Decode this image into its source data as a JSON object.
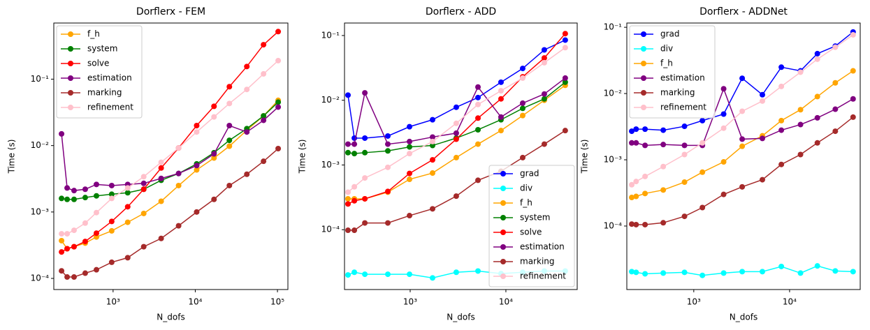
{
  "chart_data": [
    {
      "type": "line",
      "title": "Dorflerx - FEM",
      "xlabel": "N_dofs",
      "ylabel": "Time (s)",
      "xscale": "log",
      "yscale": "log",
      "legend": "upper left",
      "xlim": [
        190,
        134000
      ],
      "ylim": [
        6.8e-05,
        0.7
      ],
      "xticks": [
        {
          "value": 1000,
          "label": "10³"
        },
        {
          "value": 10000,
          "label": "10⁴"
        },
        {
          "value": 100000,
          "label": "10⁵"
        }
      ],
      "yticks": [
        {
          "value": 0.0001,
          "label": "10⁻⁴"
        },
        {
          "value": 0.001,
          "label": "10⁻³"
        },
        {
          "value": 0.01,
          "label": "10⁻²"
        },
        {
          "value": 0.1,
          "label": "10⁻¹"
        }
      ],
      "x": [
        236,
        276,
        335,
        458,
        627,
        962,
        1506,
        2360,
        3845,
        6270,
        10400,
        16900,
        26000,
        42400,
        67700,
        102000
      ],
      "series": [
        {
          "name": "f_h",
          "color": "#ffa500",
          "values": [
            0.00037,
            0.00028,
            0.0003,
            0.00034,
            0.00042,
            0.00052,
            0.0007,
            0.00095,
            0.00145,
            0.0025,
            0.0043,
            0.0065,
            0.0098,
            0.017,
            0.028,
            0.048
          ]
        },
        {
          "name": "system",
          "color": "#008000",
          "values": [
            0.0016,
            0.00155,
            0.00155,
            0.00165,
            0.00175,
            0.00185,
            0.00195,
            0.0022,
            0.003,
            0.0038,
            0.0053,
            0.0078,
            0.012,
            0.018,
            0.028,
            0.045
          ]
        },
        {
          "name": "solve",
          "color": "#ff0000",
          "values": [
            0.00025,
            0.00028,
            0.0003,
            0.00036,
            0.00048,
            0.00072,
            0.0012,
            0.0022,
            0.0046,
            0.0092,
            0.02,
            0.039,
            0.077,
            0.155,
            0.33,
            0.52
          ]
        },
        {
          "name": "estimation",
          "color": "#800080",
          "values": [
            0.015,
            0.0023,
            0.0021,
            0.0022,
            0.0026,
            0.0025,
            0.0026,
            0.0027,
            0.0032,
            0.0038,
            0.005,
            0.0075,
            0.02,
            0.016,
            0.024,
            0.038
          ]
        },
        {
          "name": "marking",
          "color": "#a52a2a",
          "values": [
            0.00013,
            0.000105,
            0.000105,
            0.00012,
            0.000135,
            0.000175,
            0.000205,
            0.0003,
            0.0004,
            0.00062,
            0.001,
            0.00155,
            0.0025,
            0.0037,
            0.0058,
            0.009
          ]
        },
        {
          "name": "refinement",
          "color": "#ffc0cb",
          "values": [
            0.00047,
            0.00047,
            0.00053,
            0.00068,
            0.00098,
            0.0016,
            0.0023,
            0.0034,
            0.0056,
            0.0092,
            0.016,
            0.027,
            0.043,
            0.07,
            0.12,
            0.19
          ]
        }
      ]
    },
    {
      "type": "line",
      "title": "Dorflerx - ADD",
      "xlabel": "N_dofs",
      "ylabel": "Time (s)",
      "xscale": "log",
      "yscale": "log",
      "legend": "lower right",
      "xlim": [
        206,
        55600
      ],
      "ylim": [
        1.19e-05,
        0.156
      ],
      "xticks": [
        {
          "value": 1000,
          "label": "10³"
        },
        {
          "value": 10000,
          "label": "10⁴"
        }
      ],
      "yticks": [
        {
          "value": 0.0001,
          "label": "10⁻⁴"
        },
        {
          "value": 0.001,
          "label": "10⁻³"
        },
        {
          "value": 0.01,
          "label": "10⁻²"
        },
        {
          "value": 0.1,
          "label": "10⁻¹"
        }
      ],
      "x": [
        224,
        261,
        336,
        584,
        984,
        1713,
        3030,
        5110,
        8890,
        14980,
        25200,
        41700
      ],
      "series": [
        {
          "name": "grad",
          "color": "#0000ff",
          "values": [
            0.012,
            0.0026,
            0.0026,
            0.0028,
            0.0039,
            0.005,
            0.0078,
            0.011,
            0.019,
            0.031,
            0.06,
            0.085
          ]
        },
        {
          "name": "div",
          "color": "#00ffff",
          "values": [
            2e-05,
            2.2e-05,
            2.05e-05,
            2.05e-05,
            2.05e-05,
            1.8e-05,
            2.2e-05,
            2.3e-05,
            2.1e-05,
            2.2e-05,
            2.3e-05,
            2.3e-05
          ]
        },
        {
          "name": "f_h",
          "color": "#ffa500",
          "values": [
            0.0003,
            0.0003,
            0.0003,
            0.00038,
            0.0006,
            0.00075,
            0.0013,
            0.0021,
            0.0034,
            0.0058,
            0.01,
            0.017
          ]
        },
        {
          "name": "system",
          "color": "#008000",
          "values": [
            0.00155,
            0.0015,
            0.00155,
            0.00165,
            0.0019,
            0.002,
            0.0026,
            0.0035,
            0.005,
            0.0075,
            0.0105,
            0.019
          ]
        },
        {
          "name": "solve",
          "color": "#ff0000",
          "values": [
            0.00025,
            0.00028,
            0.0003,
            0.00039,
            0.00074,
            0.0012,
            0.0025,
            0.0053,
            0.0105,
            0.023,
            0.045,
            0.107
          ]
        },
        {
          "name": "estimation",
          "color": "#800080",
          "values": [
            0.0021,
            0.0021,
            0.013,
            0.0021,
            0.0023,
            0.0027,
            0.0031,
            0.016,
            0.0055,
            0.009,
            0.0125,
            0.022
          ]
        },
        {
          "name": "marking",
          "color": "#a52a2a",
          "values": [
            9.8e-05,
            9.8e-05,
            0.000127,
            0.000127,
            0.000165,
            0.00021,
            0.00033,
            0.00058,
            0.0008,
            0.0013,
            0.0021,
            0.0034
          ]
        },
        {
          "name": "refinement",
          "color": "#ffc0cb",
          "values": [
            0.00038,
            0.00046,
            0.00063,
            0.00092,
            0.0015,
            0.0023,
            0.0044,
            0.0086,
            0.014,
            0.022,
            0.038,
            0.065
          ]
        }
      ]
    },
    {
      "type": "line",
      "title": "Dorflerx - ADDNet",
      "xlabel": "N_dofs",
      "ylabel": "Time (s)",
      "xscale": "log",
      "yscale": "log",
      "legend": "upper left",
      "xlim": [
        200,
        54600
      ],
      "ylim": [
        1.1e-05,
        0.116
      ],
      "xticks": [
        {
          "value": 1000,
          "label": "10³"
        },
        {
          "value": 10000,
          "label": "10⁴"
        }
      ],
      "yticks": [
        {
          "value": 0.0001,
          "label": "10⁻⁴"
        },
        {
          "value": 0.001,
          "label": "10⁻³"
        },
        {
          "value": 0.01,
          "label": "10⁻²"
        },
        {
          "value": 0.1,
          "label": "10⁻¹"
        }
      ],
      "x": [
        225,
        250,
        310,
        480,
        800,
        1230,
        2050,
        3200,
        5200,
        8200,
        13000,
        19500,
        30000,
        46000
      ],
      "series": [
        {
          "name": "grad",
          "color": "#0000ff",
          "values": [
            0.0027,
            0.0029,
            0.0029,
            0.0028,
            0.0032,
            0.0039,
            0.0049,
            0.017,
            0.0096,
            0.025,
            0.022,
            0.04,
            0.052,
            0.085
          ]
        },
        {
          "name": "div",
          "color": "#00ffff",
          "values": [
            2.05e-05,
            2e-05,
            1.9e-05,
            1.95e-05,
            2e-05,
            1.8e-05,
            1.95e-05,
            2.05e-05,
            2.05e-05,
            2.45e-05,
            1.95e-05,
            2.5e-05,
            2.1e-05,
            2.05e-05
          ]
        },
        {
          "name": "f_h",
          "color": "#ffa500",
          "values": [
            0.00027,
            0.00028,
            0.00031,
            0.00035,
            0.00046,
            0.00065,
            0.00093,
            0.0016,
            0.0023,
            0.0039,
            0.0057,
            0.009,
            0.0145,
            0.022
          ]
        },
        {
          "name": "estimation",
          "color": "#800080",
          "values": [
            0.0018,
            0.0018,
            0.00165,
            0.0017,
            0.00165,
            0.00165,
            0.0118,
            0.00205,
            0.0021,
            0.0028,
            0.0034,
            0.0043,
            0.0058,
            0.0083
          ]
        },
        {
          "name": "marking",
          "color": "#a52a2a",
          "values": [
            0.000107,
            0.000105,
            0.000105,
            0.000112,
            0.00014,
            0.00019,
            0.0003,
            0.00039,
            0.0005,
            0.00085,
            0.0012,
            0.0018,
            0.0027,
            0.0044
          ]
        },
        {
          "name": "refinement",
          "color": "#ffc0cb",
          "values": [
            0.00042,
            0.00047,
            0.00056,
            0.00079,
            0.0012,
            0.0018,
            0.003,
            0.0054,
            0.0077,
            0.0128,
            0.021,
            0.033,
            0.05,
            0.077
          ]
        }
      ]
    }
  ]
}
